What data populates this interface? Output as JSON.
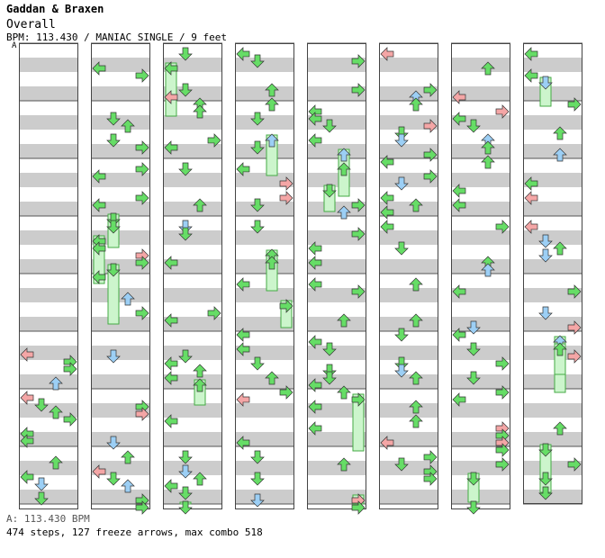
{
  "song": {
    "title": "Gaddan & Braxen",
    "chart_name": "Overall",
    "info": "BPM: 113.430 / MANIAC SINGLE / 9 feet"
  },
  "section_marker": "A",
  "footer": {
    "bpm_line": "A: 113.430 BPM",
    "stats": "474 steps, 127 freeze arrows, max combo 518"
  },
  "colors": {
    "left_right": "#f4a6a6",
    "down_up": "#9ccff5",
    "green": "#66dd66",
    "freeze": "#ccf5cc",
    "beat_band": "#cccccc"
  }
}
